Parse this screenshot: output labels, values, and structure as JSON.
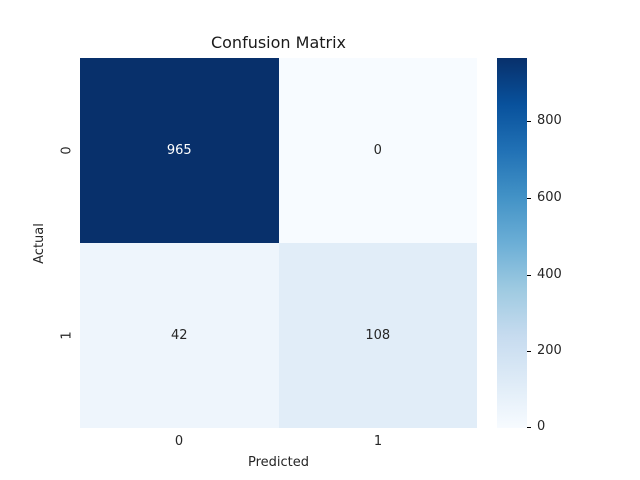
{
  "figure": {
    "title": "Confusion Matrix",
    "xlabel": "Predicted",
    "ylabel": "Actual"
  },
  "chart_data": {
    "type": "heatmap",
    "title": "Confusion Matrix",
    "xlabel": "Predicted",
    "ylabel": "Actual",
    "x_tick_labels": [
      "0",
      "1"
    ],
    "y_tick_labels": [
      "0",
      "1"
    ],
    "rows": [
      {
        "actual": "0",
        "values": [
          965,
          0
        ]
      },
      {
        "actual": "1",
        "values": [
          42,
          108
        ]
      }
    ],
    "vmin": 0,
    "vmax": 965,
    "colormap": "Blues",
    "grid": false,
    "colorbar": {
      "position": "right",
      "ticks": [
        0,
        200,
        400,
        600,
        800
      ]
    }
  },
  "cells": [
    {
      "label": "965",
      "bg": "#08306b",
      "fg": "#ffffff"
    },
    {
      "label": "0",
      "bg": "#f7fbff",
      "fg": "#262626"
    },
    {
      "label": "42",
      "bg": "#eef5fc",
      "fg": "#262626"
    },
    {
      "label": "108",
      "bg": "#e1edf8",
      "fg": "#262626"
    }
  ],
  "axis": {
    "x_ticks": [
      "0",
      "1"
    ],
    "y_ticks": [
      "0",
      "1"
    ]
  },
  "colorbar_ticks": {
    "t800": "800",
    "t600": "600",
    "t400": "400",
    "t200": "200",
    "t0": "0"
  },
  "colors": {
    "cmap_min": "#f7fbff",
    "cmap_max": "#08306b",
    "text": "#262626",
    "background": "#ffffff"
  }
}
